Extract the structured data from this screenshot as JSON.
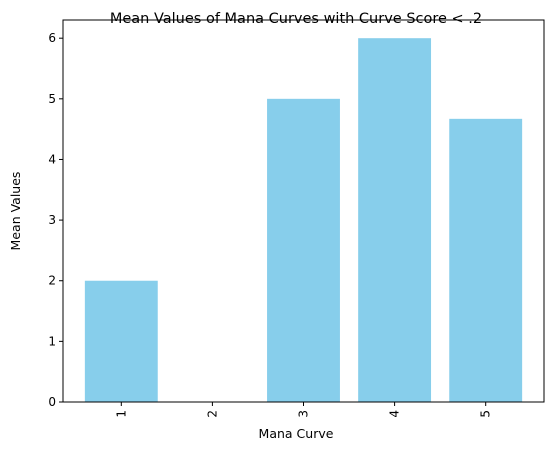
{
  "chart_data": {
    "type": "bar",
    "title": "Mean Values of Mana Curves with Curve Score < .2",
    "xlabel": "Mana Curve",
    "ylabel": "Mean Values",
    "categories": [
      "1",
      "2",
      "3",
      "4",
      "5"
    ],
    "values": [
      2.0,
      0.0,
      5.0,
      6.0,
      4.67
    ],
    "ylim": [
      0,
      6.3
    ],
    "yticks": [
      "0",
      "1",
      "2",
      "3",
      "4",
      "5",
      "6"
    ],
    "x_tick_rotation": "vertical",
    "grid": false,
    "bar_color": "#87CEEB"
  }
}
